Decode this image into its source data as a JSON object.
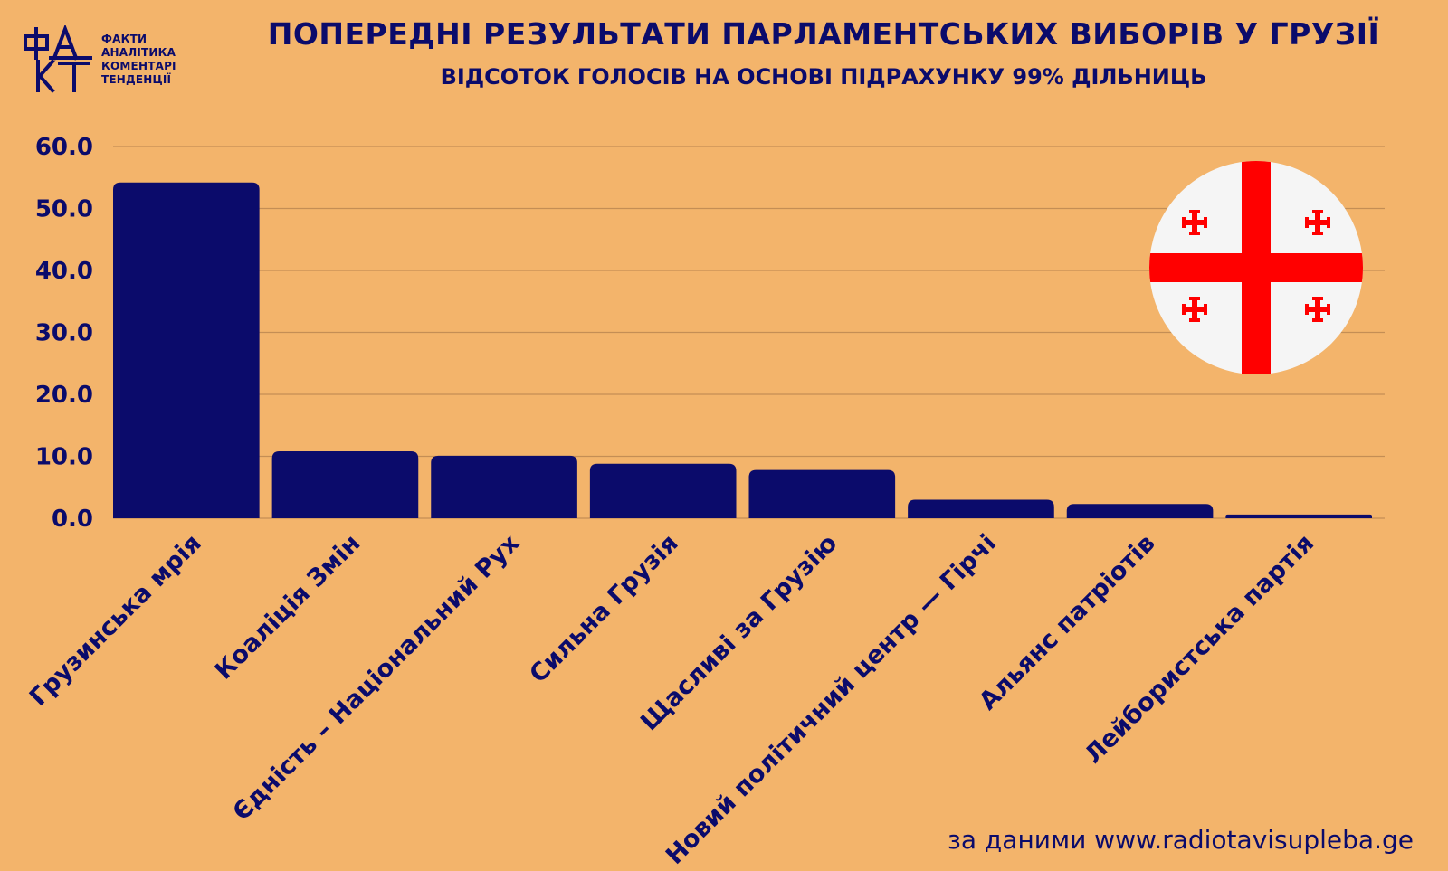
{
  "logo": {
    "lines": [
      "ФАКТИ",
      "АНАЛІТИКА",
      "КОМЕНТАРІ",
      "ТЕНДЕНЦІЇ"
    ],
    "mark_text": "ФАКТ"
  },
  "header": {
    "title": "ПОПЕРЕДНІ РЕЗУЛЬТАТИ ПАРЛАМЕНТСЬКИХ ВИБОРІВ У ГРУЗІЇ",
    "subtitle": "ВІДСОТОК ГОЛОСІВ НА ОСНОВІ ПІДРАХУНКУ 99% ДІЛЬНИЦЬ"
  },
  "source": "за даними www.radiotavisupleba.ge",
  "colors": {
    "background": "#F3B46B",
    "bar": "#0B0B6B",
    "text": "#0B0B6B",
    "grid": "#C48E55",
    "flag_red": "#FF0000",
    "flag_white": "#F5F5F5"
  },
  "chart_data": {
    "type": "bar",
    "categories": [
      "Грузинська мрія",
      "Коаліція Змін",
      "Єдність – Національний Рух",
      "Сильна Грузія",
      "Щасливі за Грузію",
      "Новий політичний центр — Гірчі",
      "Альянс патріотів",
      "Лейбористська партія"
    ],
    "values": [
      54.2,
      10.8,
      10.1,
      8.8,
      7.8,
      3.0,
      2.3,
      0.6
    ],
    "title": "ПОПЕРЕДНІ РЕЗУЛЬТАТИ ПАРЛАМЕНТСЬКИХ ВИБОРІВ У ГРУЗІЇ",
    "xlabel": "",
    "ylabel": "",
    "ylim": [
      0,
      60
    ],
    "yticks": [
      "0.0",
      "10.0",
      "20.0",
      "30.0",
      "40.0",
      "50.0",
      "60.0"
    ],
    "ytick_values": [
      0,
      10,
      20,
      30,
      40,
      50,
      60
    ],
    "grid": true,
    "legend": "none"
  }
}
